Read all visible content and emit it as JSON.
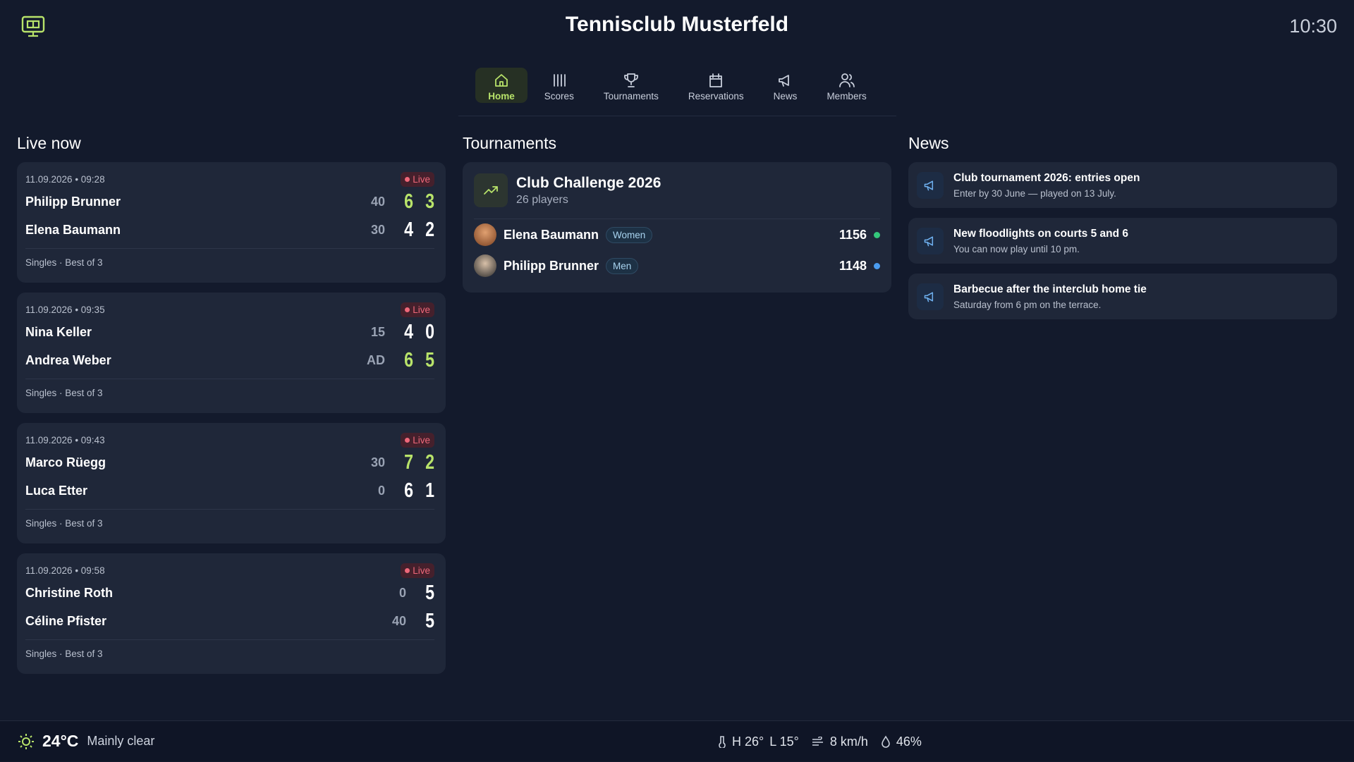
{
  "header": {
    "title": "Tennisclub Musterfeld",
    "time": "10:30"
  },
  "nav": [
    "Home",
    "Scores",
    "Tournaments",
    "Reservations",
    "News",
    "Members"
  ],
  "live": {
    "title": "Live now",
    "matches": [
      {
        "time": "11.09.2026 • 09:28",
        "status": "Live",
        "format": "Singles · Best of 3",
        "players": [
          {
            "name": "Philipp Brunner",
            "points": "40",
            "sets": [
              6,
              3
            ],
            "highlight": true
          },
          {
            "name": "Elena Baumann",
            "points": "30",
            "sets": [
              4,
              2
            ],
            "highlight": false
          }
        ]
      },
      {
        "time": "11.09.2026 • 09:35",
        "status": "Live",
        "format": "Singles · Best of 3",
        "players": [
          {
            "name": "Nina Keller",
            "points": "15",
            "sets": [
              4,
              0
            ],
            "highlight": false
          },
          {
            "name": "Andrea Weber",
            "points": "AD",
            "sets": [
              6,
              5
            ],
            "highlight": true
          }
        ]
      },
      {
        "time": "11.09.2026 • 09:43",
        "status": "Live",
        "format": "Singles · Best of 3",
        "players": [
          {
            "name": "Marco Rüegg",
            "points": "30",
            "sets": [
              7,
              2
            ],
            "highlight": true
          },
          {
            "name": "Luca Etter",
            "points": "0",
            "sets": [
              6,
              1
            ],
            "highlight": false
          }
        ]
      },
      {
        "time": "11.09.2026 • 09:58",
        "status": "Live",
        "format": "Singles · Best of 3",
        "players": [
          {
            "name": "Christine Roth",
            "points": "0",
            "sets": [
              5
            ],
            "highlight": false
          },
          {
            "name": "Céline Pfister",
            "points": "40",
            "sets": [
              5
            ],
            "highlight": false
          }
        ]
      }
    ]
  },
  "tournaments": {
    "title": "Tournaments",
    "items": [
      {
        "name": "Club Challenge 2026",
        "players": "26 players",
        "entries": [
          {
            "name": "Elena Baumann",
            "category": "Women",
            "rating": 1156,
            "color": "#34c77b"
          },
          {
            "name": "Philipp Brunner",
            "category": "Men",
            "rating": 1148,
            "color": "#4a9cf0"
          }
        ]
      }
    ]
  },
  "news": {
    "title": "News",
    "items": [
      {
        "title": "Club tournament 2026: entries open",
        "text": "Enter by 30 June — played on 13 July."
      },
      {
        "title": "New floodlights on courts 5 and 6",
        "text": "You can now play until 10 pm."
      },
      {
        "title": "Barbecue after the interclub home tie",
        "text": "Saturday from 6 pm on the terrace."
      }
    ]
  },
  "weather": {
    "temperature": "24°C",
    "condition": "Mainly clear",
    "high": "H 26°",
    "low": "L 15°",
    "wind": "8 km/h",
    "humidity": "46%"
  }
}
